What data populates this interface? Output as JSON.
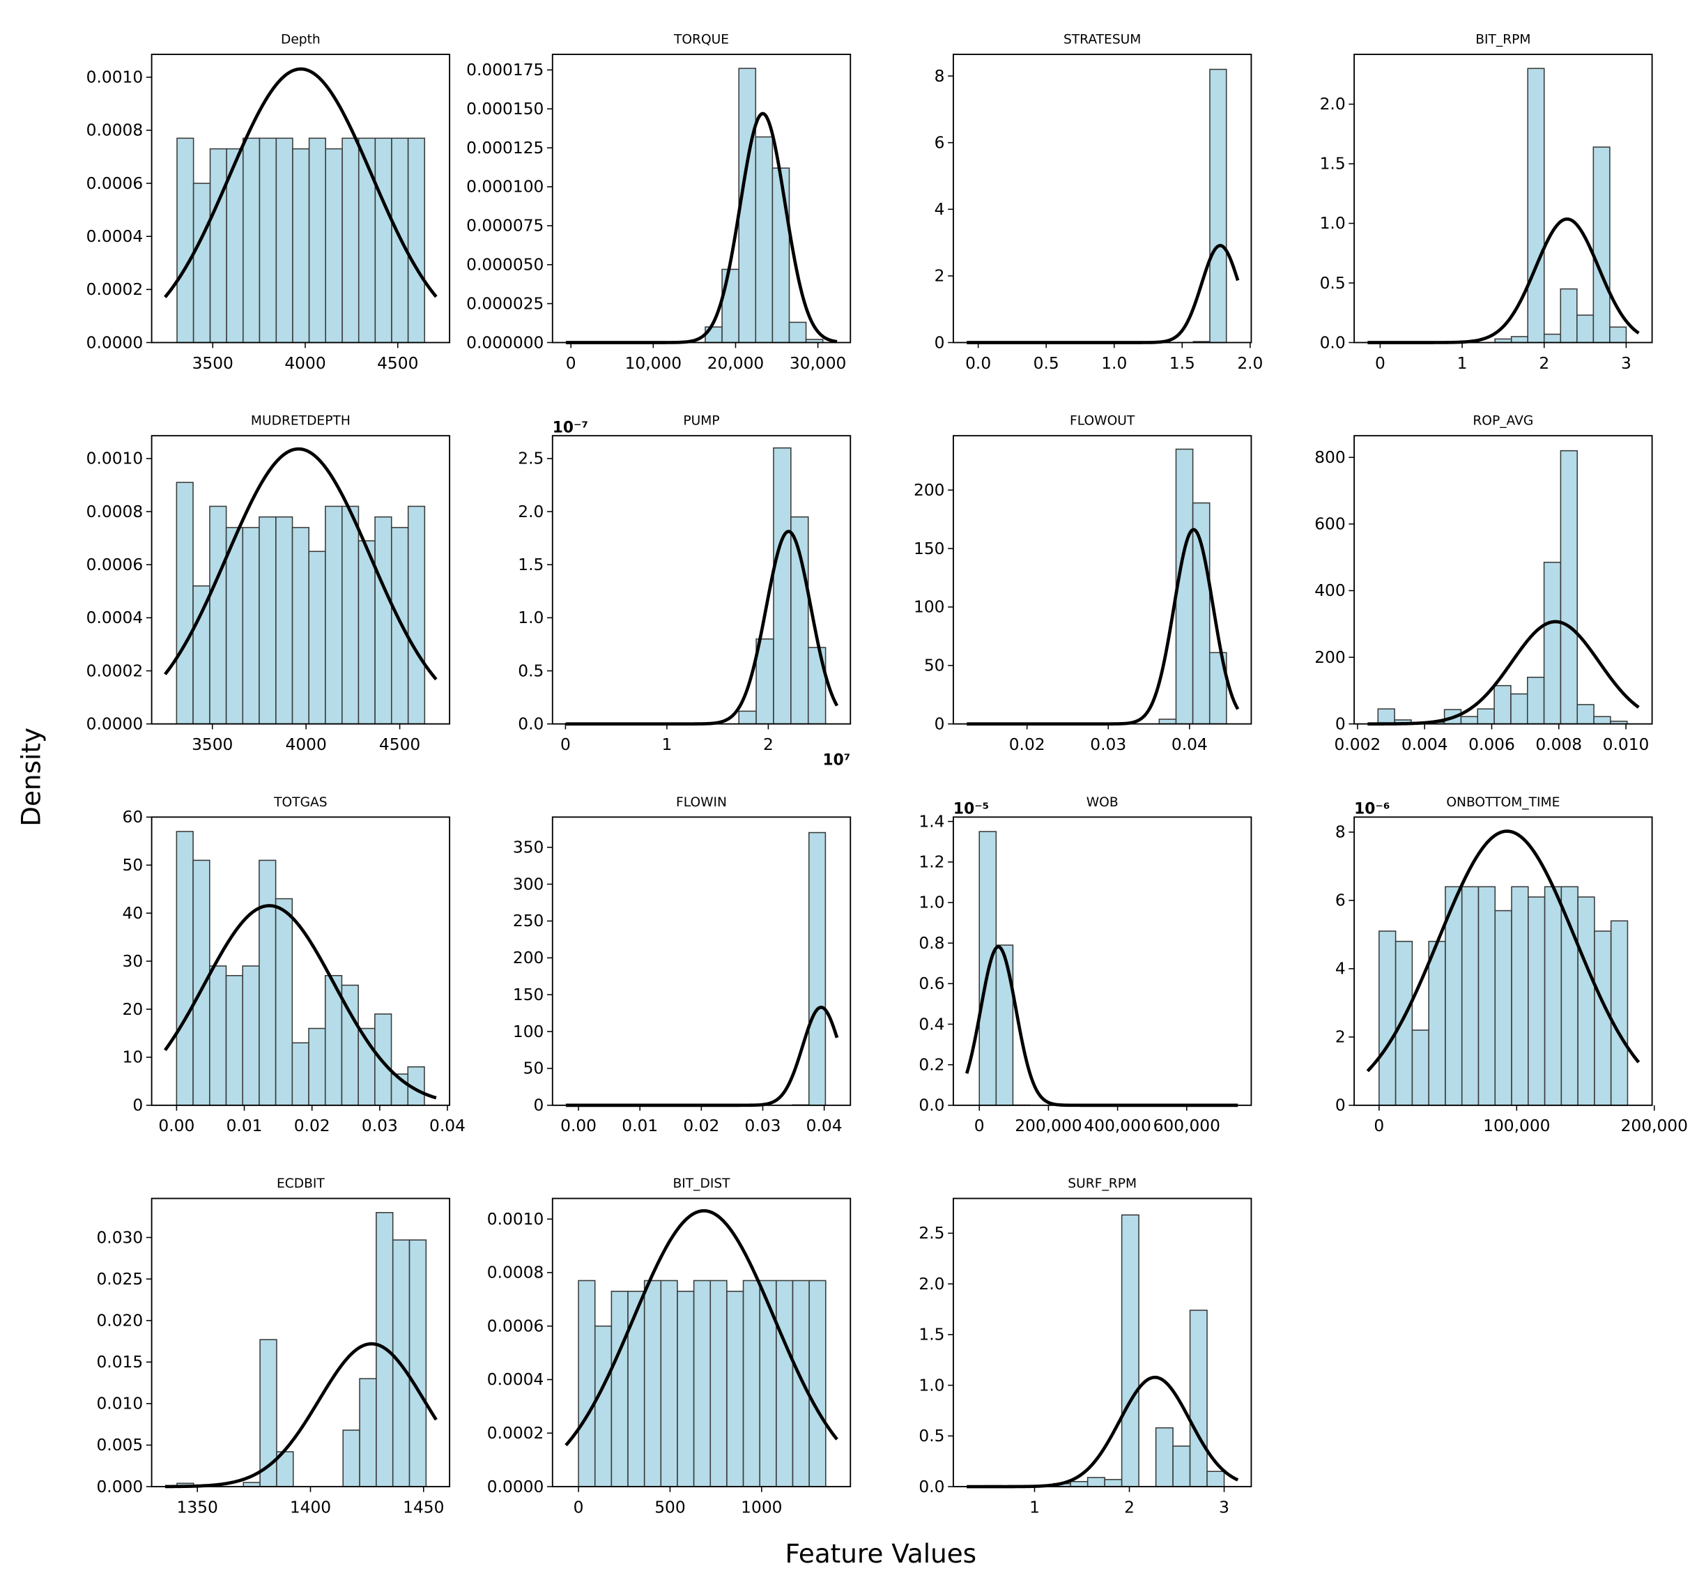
{
  "y_label": "Density",
  "x_label": "Feature Values",
  "chart_data": [
    {
      "type": "histogram",
      "title": "Depth",
      "color": "#add8e6",
      "fit_color": "#000000",
      "bins": [
        3307,
        3396,
        3486,
        3575,
        3664,
        3753,
        3843,
        3932,
        4021,
        4110,
        4200,
        4289,
        4378,
        4467,
        4556,
        4645
      ],
      "values": [
        0.00077,
        0.0006,
        0.00073,
        0.00073,
        0.00077,
        0.00077,
        0.00077,
        0.00073,
        0.00077,
        0.00073,
        0.00077,
        0.00077,
        0.00077,
        0.00077,
        0.00077
      ],
      "fit": {
        "mean": 3976,
        "std": 387
      },
      "xlim": [
        3170,
        4780
      ],
      "ylim": [
        0,
        0.001086
      ],
      "xticks": [
        3500,
        4000,
        4500
      ],
      "yticks": [
        {
          "value": 0,
          "label": "0.0000"
        },
        {
          "value": 0.0002,
          "label": "0.0002"
        },
        {
          "value": 0.0004,
          "label": "0.0004"
        },
        {
          "value": 0.0006,
          "label": "0.0006"
        },
        {
          "value": 0.0008,
          "label": "0.0008"
        },
        {
          "value": 0.001,
          "label": "0.0010"
        }
      ]
    },
    {
      "type": "histogram",
      "title": "TORQUE",
      "color": "#add8e6",
      "fit_color": "#000000",
      "bins": [
        0,
        2040,
        4080,
        6120,
        8160,
        10200,
        12240,
        14280,
        16320,
        18360,
        20400,
        22440,
        24480,
        26520,
        28560,
        30600
      ],
      "values": [
        5e-07,
        0,
        0,
        0,
        0,
        0,
        0,
        0,
        1e-05,
        4.7e-05,
        0.000176,
        0.000132,
        0.000112,
        1.3e-05,
        2e-06
      ],
      "fit": {
        "mean": 23300,
        "std": 2714
      },
      "xlim": [
        -2237,
        33950
      ],
      "ylim": [
        0,
        0.000185
      ],
      "xticks": [
        0,
        {
          "value": 10000,
          "label": "10,000"
        },
        {
          "value": 20000,
          "label": "20,000"
        },
        {
          "value": 30000,
          "label": "30,000"
        }
      ],
      "yticks": [
        {
          "value": 0,
          "label": "0.000000"
        },
        {
          "value": 2.5e-05,
          "label": "0.000025"
        },
        {
          "value": 5e-05,
          "label": "0.000050"
        },
        {
          "value": 7.5e-05,
          "label": "0.000075"
        },
        {
          "value": 0.0001,
          "label": "0.000100"
        },
        {
          "value": 0.000125,
          "label": "0.000125"
        },
        {
          "value": 0.00015,
          "label": "0.000150"
        },
        {
          "value": 0.000175,
          "label": "0.000175"
        }
      ]
    },
    {
      "type": "histogram",
      "title": "STRATESUM",
      "color": "#add8e6",
      "fit_color": "#000000",
      "bins": [
        0,
        0.1217,
        0.2433,
        0.365,
        0.4867,
        0.6083,
        0.73,
        0.8517,
        0.9733,
        1.095,
        1.2167,
        1.3383,
        1.46,
        1.5817,
        1.7033,
        1.825
      ],
      "values": [
        0.01,
        0,
        0,
        0,
        0,
        0,
        0,
        0,
        0,
        0,
        0,
        0,
        0,
        0.03,
        8.2
      ],
      "fit": {
        "mean": 1.78,
        "std": 0.137
      },
      "xlim": [
        -0.183,
        2.008
      ],
      "ylim": [
        0,
        8.65
      ],
      "xticks": [
        {
          "value": 0,
          "label": "0.0"
        },
        0.5,
        {
          "value": 1,
          "label": "1.0"
        },
        1.5,
        {
          "value": 2,
          "label": "2.0"
        }
      ],
      "yticks": [
        0,
        2,
        4,
        6,
        8
      ]
    },
    {
      "type": "histogram",
      "title": "BIT_RPM",
      "color": "#add8e6",
      "fit_color": "#000000",
      "bins": [
        0,
        0.2,
        0.4,
        0.6,
        0.8,
        1,
        1.2,
        1.4,
        1.6,
        1.8,
        2,
        2.2,
        2.4,
        2.6,
        2.8,
        3
      ],
      "values": [
        0.005,
        0,
        0.005,
        0,
        0,
        0.005,
        0,
        0.03,
        0.05,
        2.3,
        0.07,
        0.45,
        0.23,
        1.64,
        0.13
      ],
      "fit": {
        "mean": 2.28,
        "std": 0.385
      },
      "xlim": [
        -0.317,
        3.316
      ],
      "ylim": [
        0,
        2.418
      ],
      "xticks": [
        0,
        1,
        2,
        3
      ],
      "yticks": [
        {
          "value": 0,
          "label": "0.0"
        },
        0.5,
        {
          "value": 1,
          "label": "1.0"
        },
        1.5,
        {
          "value": 2,
          "label": "2.0"
        }
      ]
    },
    {
      "type": "histogram",
      "title": "MUDRETDEPTH",
      "color": "#add8e6",
      "fit_color": "#000000",
      "bins": [
        3309,
        3397,
        3486,
        3574,
        3662,
        3750,
        3839,
        3927,
        4015,
        4103,
        4192,
        4280,
        4368,
        4456,
        4545,
        4633
      ],
      "values": [
        0.00091,
        0.00052,
        0.00082,
        0.00074,
        0.00074,
        0.00078,
        0.00078,
        0.00074,
        0.00065,
        0.00082,
        0.00082,
        0.00069,
        0.00078,
        0.00074,
        0.00082
      ],
      "fit": {
        "mean": 3960,
        "std": 385
      },
      "xlim": [
        3176,
        4766
      ],
      "ylim": [
        0,
        0.001086
      ],
      "xticks": [
        3500,
        4000,
        4500
      ],
      "yticks": [
        {
          "value": 0,
          "label": "0.0000"
        },
        {
          "value": 0.0002,
          "label": "0.0002"
        },
        {
          "value": 0.0004,
          "label": "0.0004"
        },
        {
          "value": 0.0006,
          "label": "0.0006"
        },
        {
          "value": 0.0008,
          "label": "0.0008"
        },
        {
          "value": 0.001,
          "label": "0.0010"
        }
      ]
    },
    {
      "type": "histogram",
      "title": "PUMP",
      "color": "#add8e6",
      "fit_color": "#000000",
      "bins": [
        0,
        1710000,
        3420000,
        5130000,
        6840000,
        8550000,
        10260000,
        11970000,
        13680000,
        15390000,
        17100000,
        18810000,
        20520000,
        22230000,
        23940000,
        25650000
      ],
      "values": [
        5e-10,
        0,
        0,
        0,
        0,
        0,
        0,
        0,
        0,
        0,
        1.2e-08,
        8e-08,
        2.6e-07,
        1.95e-07,
        7.2e-08
      ],
      "fit": {
        "mean": 22000000,
        "std": 2200000
      },
      "xlim": [
        -1280000,
        28100000
      ],
      "ylim": [
        0,
        2.715e-07
      ],
      "xticks": [
        0,
        {
          "value": 10000000,
          "label": "1"
        },
        {
          "value": 20000000,
          "label": "2"
        }
      ],
      "xoffset": "10⁷",
      "yoffset": "10⁻⁷",
      "yticks": [
        {
          "value": 0,
          "label": "0.0"
        },
        {
          "value": 5e-08,
          "label": "0.5"
        },
        {
          "value": 1e-07,
          "label": "1.0"
        },
        {
          "value": 1.5e-07,
          "label": "1.5"
        },
        {
          "value": 2e-07,
          "label": "2.0"
        },
        {
          "value": 2.5e-07,
          "label": "2.5"
        }
      ]
    },
    {
      "type": "histogram",
      "title": "FLOWOUT",
      "color": "#add8e6",
      "fit_color": "#000000",
      "bins": [
        0.0135,
        0.01557,
        0.01764,
        0.01971,
        0.02178,
        0.02385,
        0.02592,
        0.02799,
        0.03006,
        0.03213,
        0.0342,
        0.03627,
        0.03834,
        0.04041,
        0.04248,
        0.04455
      ],
      "values": [
        0.5,
        0,
        0,
        0,
        0,
        0,
        0,
        0,
        0,
        0,
        0,
        4,
        235,
        189,
        61
      ],
      "fit": {
        "mean": 0.0405,
        "std": 0.0024
      },
      "xlim": [
        0.01093,
        0.0476
      ],
      "ylim": [
        0,
        246.5
      ],
      "xticks": [
        0.02,
        0.03,
        0.04
      ],
      "yticks": [
        0,
        50,
        100,
        150,
        200
      ]
    },
    {
      "type": "histogram",
      "title": "ROP_AVG",
      "color": "#add8e6",
      "fit_color": "#000000",
      "bins": [
        0.00261,
        0.003105,
        0.0036,
        0.004095,
        0.00459,
        0.005085,
        0.00558,
        0.006075,
        0.00657,
        0.007065,
        0.00756,
        0.008055,
        0.00855,
        0.009045,
        0.00954,
        0.010035
      ],
      "values": [
        45,
        12,
        0,
        5,
        43,
        22,
        45,
        115,
        90,
        140,
        485,
        820,
        58,
        22,
        8
      ],
      "fit": {
        "mean": 0.0079,
        "std": 0.0013
      },
      "xlim": [
        0.0019,
        0.01078
      ],
      "ylim": [
        0,
        865
      ],
      "xticks": [
        0.002,
        0.004,
        0.006,
        0.008,
        {
          "value": 0.01,
          "label": "0.010"
        }
      ],
      "yticks": [
        0,
        200,
        400,
        600,
        800
      ]
    },
    {
      "type": "histogram",
      "title": "TOTGAS",
      "color": "#add8e6",
      "fit_color": "#000000",
      "bins": [
        0,
        0.00244,
        0.00488,
        0.00732,
        0.00976,
        0.0122,
        0.01464,
        0.01708,
        0.01952,
        0.02196,
        0.0244,
        0.02684,
        0.02928,
        0.03172,
        0.03416,
        0.0366
      ],
      "values": [
        57,
        51,
        29,
        27,
        29,
        51,
        43,
        13,
        16,
        27,
        25,
        16,
        19,
        6.5,
        8
      ],
      "fit": {
        "mean": 0.0137,
        "std": 0.0096
      },
      "xlim": [
        -0.00368,
        0.04032
      ],
      "ylim": [
        0,
        60
      ],
      "xticks": [
        {
          "value": 0,
          "label": "0.00"
        },
        {
          "value": 0.01,
          "label": "0.01"
        },
        {
          "value": 0.02,
          "label": "0.02"
        },
        {
          "value": 0.03,
          "label": "0.03"
        },
        {
          "value": 0.04,
          "label": "0.04"
        }
      ],
      "yticks": [
        0,
        10,
        20,
        30,
        40,
        50,
        60
      ]
    },
    {
      "type": "histogram",
      "title": "FLOWIN",
      "color": "#add8e6",
      "fit_color": "#000000",
      "bins": [
        0,
        0.00268,
        0.00536,
        0.00804,
        0.01072,
        0.0134,
        0.01608,
        0.01876,
        0.02144,
        0.02412,
        0.0268,
        0.02948,
        0.03216,
        0.03484,
        0.03752,
        0.0402
      ],
      "values": [
        0.3,
        0,
        0,
        0,
        0,
        0,
        0,
        0,
        0,
        0,
        0,
        0,
        0,
        0.5,
        370
      ],
      "fit": {
        "mean": 0.0395,
        "std": 0.003
      },
      "xlim": [
        -0.00423,
        0.04427
      ],
      "ylim": [
        0,
        391
      ],
      "xticks": [
        {
          "value": 0,
          "label": "0.00"
        },
        {
          "value": 0.01,
          "label": "0.01"
        },
        {
          "value": 0.02,
          "label": "0.02"
        },
        {
          "value": 0.03,
          "label": "0.03"
        },
        {
          "value": 0.04,
          "label": "0.04"
        }
      ],
      "yticks": [
        0,
        50,
        100,
        150,
        200,
        250,
        300,
        350
      ]
    },
    {
      "type": "histogram",
      "title": "WOB",
      "color": "#add8e6",
      "fit_color": "#000000",
      "bins": [
        0,
        48600,
        97200,
        145800,
        194400,
        243000,
        291600,
        340200,
        388800,
        437400,
        486000,
        534600,
        583200,
        631800,
        680400,
        729000
      ],
      "values": [
        1.35e-05,
        7.9e-06,
        1e-08,
        0,
        0,
        0,
        0,
        0,
        0,
        0,
        0,
        0,
        0,
        0,
        2e-09
      ],
      "fit": {
        "mean": 55000,
        "std": 51000
      },
      "xlim": [
        -75200,
        786800
      ],
      "ylim": [
        0,
        1.4215e-05
      ],
      "xticks": [
        0,
        {
          "value": 200000,
          "label": "200,000"
        },
        {
          "value": 400000,
          "label": "400,000"
        },
        {
          "value": 600000,
          "label": "600,000"
        }
      ],
      "yoffset": "10⁻⁵",
      "yticks": [
        {
          "value": 0,
          "label": "0.0"
        },
        {
          "value": 2e-06,
          "label": "0.2"
        },
        {
          "value": 4e-06,
          "label": "0.4"
        },
        {
          "value": 6e-06,
          "label": "0.6"
        },
        {
          "value": 8e-06,
          "label": "0.8"
        },
        {
          "value": 1e-05,
          "label": "1.0"
        },
        {
          "value": 1.2e-05,
          "label": "1.2"
        },
        {
          "value": 1.4e-05,
          "label": "1.4"
        }
      ]
    },
    {
      "type": "histogram",
      "title": "ONBOTTOM_TIME",
      "color": "#add8e6",
      "fit_color": "#000000",
      "bins": [
        0,
        12040,
        24080,
        36120,
        48160,
        60200,
        72240,
        84280,
        96320,
        108360,
        120400,
        132440,
        144480,
        156520,
        168560,
        180600
      ],
      "values": [
        5.1e-06,
        4.8e-06,
        2.2e-06,
        4.8e-06,
        6.4e-06,
        6.4e-06,
        6.4e-06,
        5.7e-06,
        6.4e-06,
        6.1e-06,
        6.4e-06,
        6.4e-06,
        6.1e-06,
        5.1e-06,
        5.4e-06
      ],
      "fit": {
        "mean": 93000,
        "std": 49700
      },
      "xlim": [
        -18100,
        198400
      ],
      "ylim": [
        0,
        8.44e-06
      ],
      "xticks": [
        0,
        {
          "value": 100000,
          "label": "100,000"
        },
        {
          "value": 200000,
          "label": "200,000"
        }
      ],
      "yoffset": "10⁻⁶",
      "yticks": [
        0,
        {
          "value": 2e-06,
          "label": "2"
        },
        {
          "value": 4e-06,
          "label": "4"
        },
        {
          "value": 6e-06,
          "label": "6"
        },
        {
          "value": 8e-06,
          "label": "8"
        }
      ]
    },
    {
      "type": "histogram",
      "title": "ECDBIT",
      "color": "#add8e6",
      "fit_color": "#000000",
      "bins": [
        1341,
        1348.34,
        1355.68,
        1363.02,
        1370.36,
        1377.7,
        1385.04,
        1392.38,
        1399.72,
        1407.06,
        1414.4,
        1421.74,
        1429.08,
        1436.42,
        1443.76,
        1451.1
      ],
      "values": [
        0.0004,
        0,
        0,
        0,
        0.0005,
        0.0177,
        0.0042,
        0,
        0,
        0,
        0.0068,
        0.013,
        0.033,
        0.0297,
        0.0297
      ],
      "fit": {
        "mean": 1427,
        "std": 23.2
      },
      "xlim": [
        1329.8,
        1461.5
      ],
      "ylim": [
        0,
        0.0347
      ],
      "xticks": [
        1350,
        1400,
        1450
      ],
      "yticks": [
        {
          "value": 0,
          "label": "0.000"
        },
        {
          "value": 0.005,
          "label": "0.005"
        },
        {
          "value": 0.01,
          "label": "0.010"
        },
        {
          "value": 0.015,
          "label": "0.015"
        },
        {
          "value": 0.02,
          "label": "0.020"
        },
        {
          "value": 0.025,
          "label": "0.025"
        },
        {
          "value": 0.03,
          "label": "0.030"
        }
      ]
    },
    {
      "type": "histogram",
      "title": "BIT_DIST",
      "color": "#add8e6",
      "fit_color": "#000000",
      "bins": [
        0,
        90,
        180,
        270,
        360,
        450,
        540,
        630,
        720,
        810,
        900,
        990,
        1080,
        1170,
        1260,
        1350
      ],
      "values": [
        0.00077,
        0.0006,
        0.00073,
        0.00073,
        0.00077,
        0.00077,
        0.00073,
        0.00077,
        0.00077,
        0.00073,
        0.00077,
        0.00077,
        0.00077,
        0.00077,
        0.00077
      ],
      "fit": {
        "mean": 685,
        "std": 387
      },
      "xlim": [
        -142,
        1485
      ],
      "ylim": [
        0,
        0.001077
      ],
      "xticks": [
        0,
        500,
        1000
      ],
      "yticks": [
        {
          "value": 0,
          "label": "0.0000"
        },
        {
          "value": 0.0002,
          "label": "0.0002"
        },
        {
          "value": 0.0004,
          "label": "0.0004"
        },
        {
          "value": 0.0006,
          "label": "0.0006"
        },
        {
          "value": 0.0008,
          "label": "0.0008"
        },
        {
          "value": 0.001,
          "label": "0.0010"
        }
      ]
    },
    {
      "type": "histogram",
      "title": "SURF_RPM",
      "color": "#add8e6",
      "fit_color": "#000000",
      "bins": [
        0.3,
        0.48,
        0.66,
        0.84,
        1.02,
        1.2,
        1.38,
        1.56,
        1.74,
        1.92,
        2.1,
        2.28,
        2.46,
        2.64,
        2.82,
        3
      ],
      "values": [
        0,
        0.01,
        0.005,
        0.01,
        0,
        0.03,
        0.05,
        0.09,
        0.07,
        2.68,
        0,
        0.58,
        0.4,
        1.74,
        0.15
      ],
      "fit": {
        "mean": 2.27,
        "std": 0.37
      },
      "xlim": [
        0.143,
        3.286
      ],
      "ylim": [
        0,
        2.843
      ],
      "xticks": [
        1,
        2,
        3
      ],
      "yticks": [
        {
          "value": 0,
          "label": "0.0"
        },
        0.5,
        {
          "value": 1,
          "label": "1.0"
        },
        1.5,
        {
          "value": 2,
          "label": "2.0"
        },
        2.5
      ]
    }
  ]
}
